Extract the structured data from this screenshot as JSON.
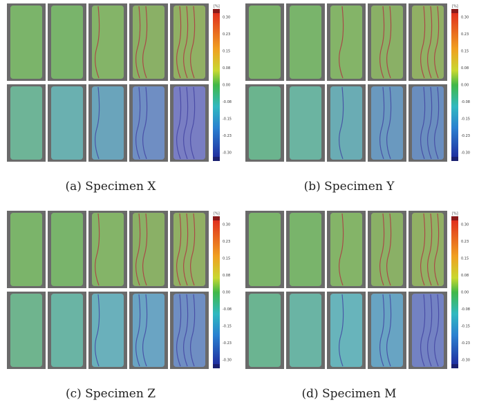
{
  "panels": [
    {
      "caption": "(a) Specimen X",
      "colorbar": {
        "unit": "[%]",
        "ticks": [
          "0.30",
          "0.23",
          "0.15",
          "0.08",
          "0.00",
          "-0.08",
          "-0.15",
          "-0.23",
          "-0.30"
        ]
      }
    },
    {
      "caption": "(b) Specimen Y",
      "colorbar": {
        "unit": "[%]",
        "ticks": [
          "0.30",
          "0.23",
          "0.15",
          "0.08",
          "0.00",
          "-0.08",
          "-0.15",
          "-0.23",
          "-0.30"
        ]
      }
    },
    {
      "caption": "(c) Specimen Z",
      "colorbar": {
        "unit": "[%]",
        "ticks": [
          "0.30",
          "0.23",
          "0.15",
          "0.08",
          "0.00",
          "-0.08",
          "-0.15",
          "-0.23",
          "-0.30"
        ]
      }
    },
    {
      "caption": "(d) Specimen M",
      "colorbar": {
        "unit": "[%]",
        "ticks": [
          "0.30",
          "0.23",
          "0.15",
          "0.08",
          "0.00",
          "-0.08",
          "-0.15",
          "-0.23",
          "-0.30"
        ]
      }
    }
  ]
}
